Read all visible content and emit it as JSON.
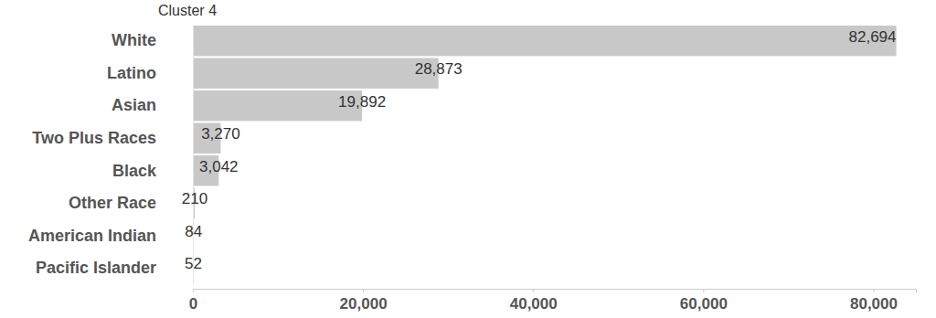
{
  "chart_data": {
    "type": "bar",
    "orientation": "horizontal",
    "title": "Cluster 4",
    "categories": [
      "White",
      "Latino",
      "Asian",
      "Two Plus Races",
      "Black",
      "Other Race",
      "American Indian",
      "Pacific Islander"
    ],
    "values": [
      82694,
      28873,
      19892,
      3270,
      3042,
      210,
      84,
      52
    ],
    "value_labels": [
      "82,694",
      "28,873",
      "19,892",
      "3,270",
      "3,042",
      "210",
      "84",
      "52"
    ],
    "color": "#c8c8c8",
    "xlim": [
      0,
      85000
    ],
    "xticks": [
      0,
      {
        "value": 20000,
        "label": "20,000"
      },
      {
        "value": 40000,
        "label": "40,000"
      },
      {
        "value": 60000,
        "label": "60,000"
      },
      {
        "value": 80000,
        "label": "80,000"
      }
    ],
    "grid": false,
    "data_labels": true
  }
}
